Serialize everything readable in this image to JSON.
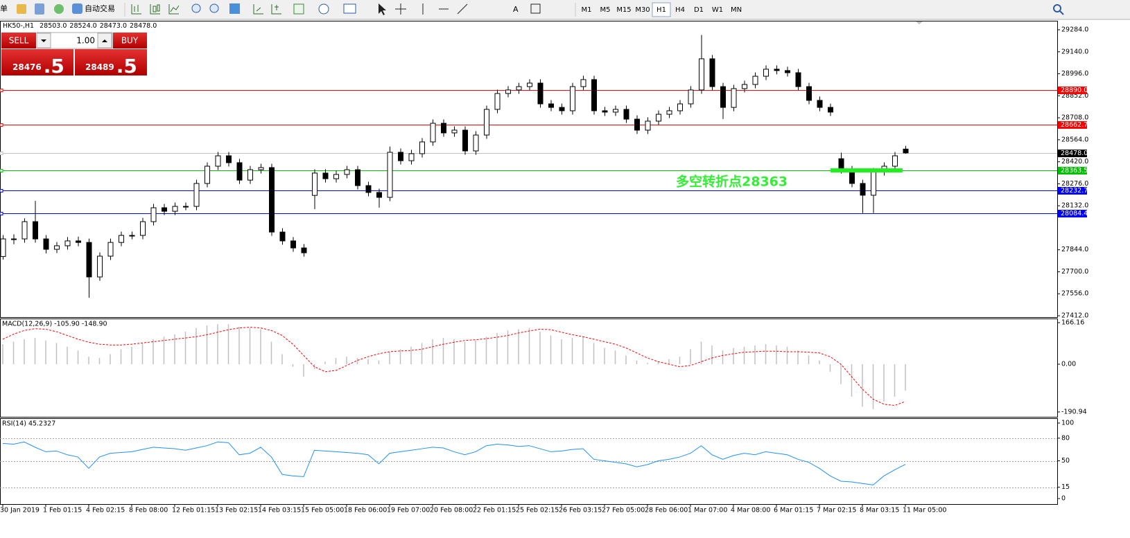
{
  "toolbar": {
    "cut_label": "单",
    "auto_trading": "自动交易",
    "timeframes": [
      "M1",
      "M5",
      "M15",
      "M30",
      "H1",
      "H4",
      "D1",
      "W1",
      "MN"
    ],
    "selected": "H1"
  },
  "trade_panel": {
    "sell": "SELL",
    "buy": "BUY",
    "volume": "1.00",
    "bid_main": "28476",
    "bid_frac": ".5",
    "ask_main": "28489",
    "ask_frac": ".5"
  },
  "chart_data": [
    {
      "type": "candlestick",
      "title": "HK50-,H1",
      "ohlc_header": [
        "28503.0",
        "28524.0",
        "28473.0",
        "28478.0"
      ],
      "categories": [
        "30 Jan 2019",
        null,
        null,
        null,
        "1 Feb 01:15",
        null,
        null,
        null,
        "4 Feb 02:15",
        null,
        null,
        null,
        "8 Feb 08:00",
        null,
        null,
        null,
        "12 Feb 01:15",
        null,
        null,
        null,
        "13 Feb 02:15",
        null,
        null,
        null,
        "14 Feb 03:15",
        null,
        null,
        null,
        "15 Feb 05:00",
        null,
        null,
        null,
        "18 Feb 06:00",
        null,
        null,
        null,
        "19 Feb 07:00",
        null,
        null,
        null,
        "20 Feb 08:00",
        null,
        null,
        null,
        "22 Feb 01:15",
        null,
        null,
        null,
        "25 Feb 02:15",
        null,
        null,
        null,
        "26 Feb 03:15",
        null,
        null,
        null,
        "27 Feb 05:00",
        null,
        null,
        null,
        "28 Feb 06:00",
        null,
        null,
        null,
        "1 Mar 07:00",
        null,
        null,
        null,
        "4 Mar 08:00",
        null,
        null,
        null,
        "6 Mar 01:15",
        null,
        null,
        null,
        "7 Mar 02:15",
        null,
        null,
        null,
        "8 Mar 03:15",
        null,
        null,
        null,
        "11 Mar 05:00"
      ],
      "ohlc": [
        [
          27800,
          27940,
          27780,
          27915
        ],
        [
          27915,
          27945,
          27880,
          27915
        ],
        [
          27915,
          28050,
          27890,
          28028
        ],
        [
          28028,
          28164,
          27890,
          27915
        ],
        [
          27915,
          27940,
          27820,
          27847
        ],
        [
          27847,
          27895,
          27822,
          27870
        ],
        [
          27870,
          27927,
          27845,
          27902
        ],
        [
          27902,
          27930,
          27867,
          27892
        ],
        [
          27892,
          27917,
          27530,
          27666
        ],
        [
          27666,
          27827,
          27641,
          27802
        ],
        [
          27802,
          27917,
          27777,
          27892
        ],
        [
          27892,
          27963,
          27867,
          27938
        ],
        [
          27938,
          27963,
          27913,
          27938
        ],
        [
          27938,
          28053,
          27913,
          28028
        ],
        [
          28028,
          28144,
          28003,
          28119
        ],
        [
          28119,
          28144,
          28071,
          28096
        ],
        [
          28096,
          28153,
          28071,
          28128
        ],
        [
          28128,
          28153,
          28103,
          28128
        ],
        [
          28128,
          28303,
          28103,
          28278
        ],
        [
          28278,
          28416,
          28253,
          28391
        ],
        [
          28391,
          28484,
          28366,
          28459
        ],
        [
          28459,
          28484,
          28389,
          28414
        ],
        [
          28414,
          28439,
          28275,
          28300
        ],
        [
          28300,
          28393,
          28275,
          28368
        ],
        [
          28368,
          28407,
          28343,
          28382
        ],
        [
          28382,
          28407,
          27935,
          27960
        ],
        [
          27960,
          27985,
          27877,
          27902
        ],
        [
          27902,
          27927,
          27831,
          27856
        ],
        [
          27856,
          27881,
          27799,
          27824
        ],
        [
          28200,
          28371,
          28110,
          28346
        ],
        [
          28346,
          28371,
          28284,
          28309
        ],
        [
          28309,
          28362,
          28284,
          28337
        ],
        [
          28337,
          28393,
          28312,
          28368
        ],
        [
          28368,
          28393,
          28239,
          28264
        ],
        [
          28264,
          28289,
          28194,
          28219
        ],
        [
          28219,
          28244,
          28120,
          28187
        ],
        [
          28187,
          28520,
          28162,
          28482
        ],
        [
          28482,
          28507,
          28402,
          28427
        ],
        [
          28427,
          28498,
          28402,
          28473
        ],
        [
          28473,
          28575,
          28448,
          28550
        ],
        [
          28550,
          28697,
          28525,
          28672
        ],
        [
          28672,
          28697,
          28584,
          28609
        ],
        [
          28609,
          28652,
          28584,
          28627
        ],
        [
          28627,
          28652,
          28466,
          28491
        ],
        [
          28491,
          28620,
          28466,
          28595
        ],
        [
          28595,
          28788,
          28570,
          28763
        ],
        [
          28763,
          28892,
          28738,
          28867
        ],
        [
          28867,
          28915,
          28842,
          28890
        ],
        [
          28890,
          28937,
          28865,
          28912
        ],
        [
          28912,
          28960,
          28887,
          28935
        ],
        [
          28935,
          28960,
          28774,
          28799
        ],
        [
          28799,
          28824,
          28751,
          28776
        ],
        [
          28776,
          28801,
          28729,
          28754
        ],
        [
          28754,
          28937,
          28729,
          28912
        ],
        [
          28912,
          28983,
          28887,
          28958
        ],
        [
          28958,
          28983,
          28729,
          28754
        ],
        [
          28754,
          28779,
          28720,
          28745
        ],
        [
          28745,
          28788,
          28720,
          28763
        ],
        [
          28763,
          28788,
          28674,
          28699
        ],
        [
          28699,
          28724,
          28602,
          28627
        ],
        [
          28627,
          28711,
          28602,
          28686
        ],
        [
          28686,
          28756,
          28661,
          28731
        ],
        [
          28731,
          28779,
          28706,
          28754
        ],
        [
          28754,
          28824,
          28729,
          28799
        ],
        [
          28799,
          28915,
          28774,
          28890
        ],
        [
          28890,
          29250,
          28865,
          29094
        ],
        [
          29094,
          29119,
          28887,
          28912
        ],
        [
          28912,
          28937,
          28700,
          28776
        ],
        [
          28776,
          28924,
          28751,
          28899
        ],
        [
          28899,
          28951,
          28874,
          28926
        ],
        [
          28926,
          29005,
          28901,
          28980
        ],
        [
          28980,
          29051,
          28955,
          29026
        ],
        [
          29026,
          29051,
          28992,
          29017
        ],
        [
          29017,
          29042,
          28978,
          29003
        ],
        [
          29003,
          29028,
          28887,
          28912
        ],
        [
          28912,
          28937,
          28797,
          28822
        ],
        [
          28822,
          28847,
          28751,
          28776
        ],
        [
          28776,
          28801,
          28720,
          28745
        ],
        [
          28440,
          28480,
          28343,
          28368
        ],
        [
          28368,
          28393,
          28253,
          28278
        ],
        [
          28278,
          28303,
          28084,
          28201
        ],
        [
          28201,
          28380,
          28084,
          28355
        ],
        [
          28355,
          28416,
          28330,
          28391
        ],
        [
          28391,
          28484,
          28366,
          28459
        ],
        [
          28503,
          28524,
          28473,
          28478
        ]
      ],
      "bull_color": "#ffffff",
      "bear_color": "#000000",
      "ylim": [
        27403,
        29343
      ],
      "yticks": [
        {
          "value": 29284,
          "label": "29284.0"
        },
        {
          "value": 29140,
          "label": "29140.0"
        },
        {
          "value": 28996,
          "label": "28996.0"
        },
        {
          "value": 28852,
          "label": "28852.0"
        },
        {
          "value": 28708,
          "label": "28708.0"
        },
        {
          "value": 28564,
          "label": "28564.0"
        },
        {
          "value": 28420,
          "label": "28420.0"
        },
        {
          "value": 28276,
          "label": "28276.0"
        },
        {
          "value": 28132,
          "label": "28132.0"
        },
        {
          "value": 27844,
          "label": "27844.0"
        },
        {
          "value": 27700,
          "label": "27700.0"
        },
        {
          "value": 27556,
          "label": "27556.0"
        },
        {
          "value": 27412,
          "label": "27412.0"
        }
      ],
      "levels": [
        {
          "value": 28890,
          "label": "28890.0",
          "color": "#ff0000",
          "label_color": "#ff0000"
        },
        {
          "value": 28662.7,
          "label": "28662.7",
          "color": "#ff0000",
          "label_color": "#ff0000"
        },
        {
          "value": 28478,
          "label": "28478.0",
          "color": "#c0c0c0",
          "label_color": "#000000"
        },
        {
          "value": 28363.5,
          "label": "28363.5",
          "color": "#00c000",
          "label_color": "#00c000"
        },
        {
          "value": 28232.7,
          "label": "28232.7",
          "color": "#0000ff",
          "label_color": "#0000ff"
        },
        {
          "value": 28084.4,
          "label": "28084.4",
          "color": "#0000ff",
          "label_color": "#0000ff"
        }
      ],
      "annotation": {
        "text": "多空转折点28363",
        "color": "#33ee33"
      }
    },
    {
      "type": "macd",
      "title": "MACD(12,26,9) -105.90 -148.90",
      "histogram": [
        80,
        90,
        100,
        105,
        95,
        85,
        70,
        55,
        30,
        25,
        40,
        60,
        70,
        85,
        100,
        110,
        120,
        130,
        145,
        155,
        160,
        160,
        150,
        145,
        140,
        90,
        40,
        -10,
        -50,
        -20,
        10,
        25,
        30,
        25,
        20,
        15,
        50,
        60,
        70,
        85,
        100,
        105,
        100,
        90,
        95,
        110,
        125,
        135,
        140,
        145,
        130,
        115,
        100,
        105,
        110,
        85,
        65,
        55,
        35,
        15,
        5,
        10,
        20,
        30,
        60,
        90,
        75,
        55,
        65,
        70,
        75,
        80,
        75,
        70,
        55,
        35,
        15,
        -30,
        -80,
        -130,
        -170,
        -180,
        -150,
        -130,
        -106
      ],
      "signal": [
        100,
        120,
        135,
        142,
        140,
        130,
        115,
        100,
        88,
        80,
        77,
        77,
        80,
        85,
        90,
        95,
        100,
        105,
        110,
        118,
        128,
        138,
        145,
        148,
        145,
        135,
        115,
        80,
        35,
        -10,
        -30,
        -25,
        -5,
        15,
        30,
        42,
        50,
        53,
        55,
        60,
        70,
        80,
        88,
        95,
        98,
        102,
        108,
        115,
        125,
        133,
        140,
        138,
        128,
        118,
        110,
        100,
        90,
        80,
        65,
        45,
        25,
        10,
        0,
        -10,
        -5,
        10,
        25,
        35,
        42,
        48,
        50,
        52,
        52,
        50,
        50,
        48,
        45,
        30,
        0,
        -50,
        -100,
        -140,
        -160,
        -165,
        -149
      ],
      "histogram_color": "#c0c0c0",
      "signal_color": "#ff0000",
      "ylim": [
        -210.5,
        182.8
      ],
      "yticks": [
        166.16,
        {
          "value": 0,
          "label": "0.00"
        },
        -190.94
      ]
    },
    {
      "type": "line",
      "title": "RSI(14) 45.2327",
      "values": [
        73,
        72,
        75,
        68,
        62,
        63,
        58,
        55,
        40,
        55,
        60,
        61,
        62,
        65,
        68,
        67,
        66,
        64,
        67,
        70,
        75,
        74,
        58,
        60,
        68,
        55,
        32,
        30,
        29,
        64,
        63,
        62,
        61,
        60,
        58,
        46,
        60,
        62,
        64,
        66,
        68,
        67,
        62,
        58,
        62,
        70,
        72,
        71,
        69,
        70,
        66,
        62,
        63,
        65,
        66,
        52,
        50,
        48,
        46,
        42,
        45,
        50,
        52,
        55,
        60,
        70,
        58,
        52,
        57,
        60,
        58,
        62,
        60,
        58,
        52,
        48,
        40,
        30,
        23,
        22,
        20,
        18,
        30,
        38,
        45.23
      ],
      "color": "#1e90ff",
      "ylim": [
        -7.3,
        106.4
      ],
      "yticks": [
        100,
        80,
        50,
        15,
        0
      ],
      "levels": [
        80,
        50,
        15
      ]
    }
  ]
}
